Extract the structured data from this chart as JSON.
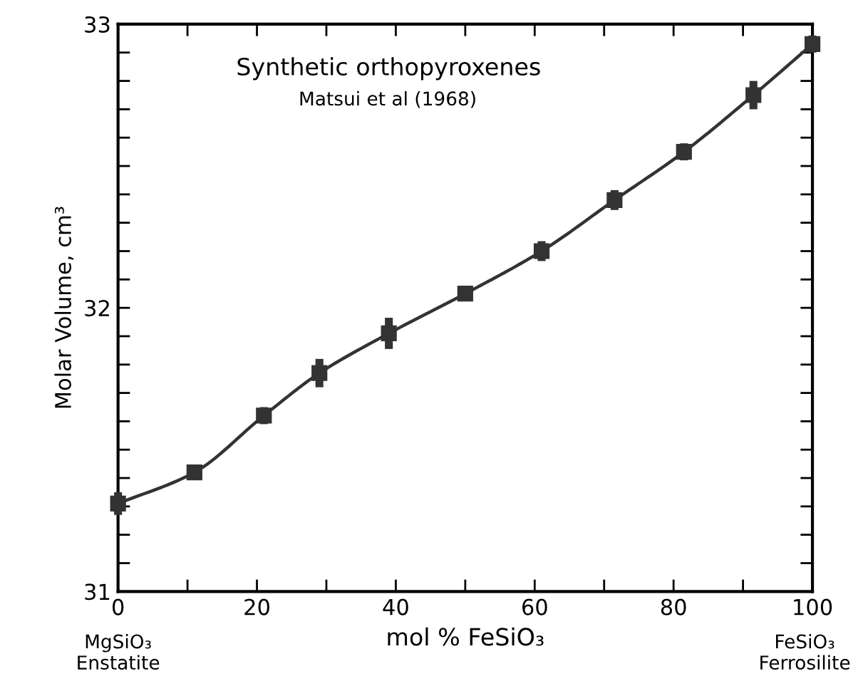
{
  "chart_data": {
    "type": "scatter",
    "title": "Synthetic orthopyroxenes",
    "xlabel": "mol % FeSiO₃",
    "ylabel": "Molar Volume, cm³",
    "annotations": [
      "Matsui et al (1968)",
      "MgSiO₃\nEnstatite",
      "FeSiO₃\nFerrosilite"
    ],
    "xlim": [
      0,
      100
    ],
    "ylim": [
      31,
      33
    ],
    "xticks": [
      0,
      {
        "value": 10,
        "label": null
      },
      20,
      {
        "value": 30,
        "label": null
      },
      40,
      {
        "value": 50,
        "label": null
      },
      60,
      {
        "value": 70,
        "label": null
      },
      80,
      {
        "value": 90,
        "label": null
      },
      100
    ],
    "yticks": [
      31,
      {
        "value": 31.1,
        "label": null
      },
      {
        "value": 31.2,
        "label": null
      },
      {
        "value": 31.3,
        "label": null
      },
      {
        "value": 31.4,
        "label": null
      },
      {
        "value": 31.5,
        "label": null
      },
      {
        "value": 31.6,
        "label": null
      },
      {
        "value": 31.7,
        "label": null
      },
      {
        "value": 31.8,
        "label": null
      },
      {
        "value": 31.9,
        "label": null
      },
      32,
      {
        "value": 32.1,
        "label": null
      },
      {
        "value": 32.2,
        "label": null
      },
      {
        "value": 32.3,
        "label": null
      },
      {
        "value": 32.4,
        "label": null
      },
      {
        "value": 32.5,
        "label": null
      },
      {
        "value": 32.6,
        "label": null
      },
      {
        "value": 32.7,
        "label": null
      },
      {
        "value": 32.8,
        "label": null
      },
      {
        "value": 32.9,
        "label": null
      },
      33
    ],
    "grid": false,
    "series": [
      {
        "type": "line",
        "color": "#333333",
        "x": [
          0,
          11,
          21,
          29,
          39,
          50,
          61,
          71.5,
          81.5,
          91.5,
          100
        ],
        "values": [
          31.31,
          31.42,
          31.62,
          31.77,
          31.91,
          32.05,
          32.2,
          32.38,
          32.55,
          32.75,
          32.93
        ]
      },
      {
        "color": "#333333",
        "marker": "square",
        "x": [
          0,
          11,
          21,
          29,
          39,
          50,
          61,
          71.5,
          81.5,
          91.5,
          100
        ],
        "values": [
          31.31,
          31.42,
          31.62,
          31.77,
          31.91,
          32.05,
          32.2,
          32.38,
          32.55,
          32.75,
          32.93
        ],
        "errors": [
          0.04,
          0.02,
          0.03,
          0.05,
          0.055,
          0.02,
          0.035,
          0.035,
          0.03,
          0.05,
          0.03
        ]
      }
    ]
  }
}
